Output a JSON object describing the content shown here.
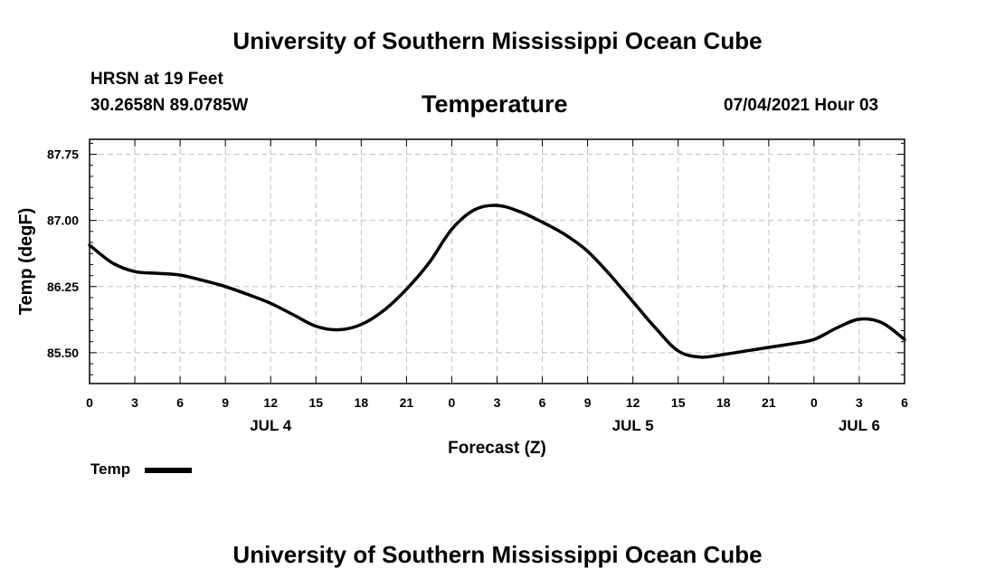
{
  "header": {
    "title_top": "University of Southern Mississippi Ocean Cube",
    "station": "HRSN at 19 Feet",
    "coords": "30.2658N  89.0785W",
    "variable": "Temperature",
    "timestamp": "07/04/2021 Hour 03"
  },
  "footer": {
    "title_bottom": "University of Southern Mississippi Ocean Cube"
  },
  "legend": {
    "label": "Temp"
  },
  "chart_data": {
    "type": "line",
    "title": "Temperature",
    "xlabel": "Forecast (Z)",
    "ylabel": "Temp (degF)",
    "xlim": [
      0,
      54
    ],
    "ylim": [
      85.15,
      87.92
    ],
    "grid": true,
    "yticks": [
      85.5,
      86.25,
      87.0,
      87.75
    ],
    "ytick_labels": [
      "85.50",
      "86.25",
      "87.00",
      "87.75"
    ],
    "xticks": [
      0,
      3,
      6,
      9,
      12,
      15,
      18,
      21,
      24,
      27,
      30,
      33,
      36,
      39,
      42,
      45,
      48,
      51,
      54
    ],
    "xtick_labels": [
      "0",
      "3",
      "6",
      "9",
      "12",
      "15",
      "18",
      "21",
      "0",
      "3",
      "6",
      "9",
      "12",
      "15",
      "18",
      "21",
      "0",
      "3",
      "6"
    ],
    "date_labels": [
      {
        "x": 12,
        "label": "JUL 4"
      },
      {
        "x": 36,
        "label": "JUL 5"
      },
      {
        "x": 51,
        "label": "JUL 6"
      }
    ],
    "series": [
      {
        "name": "Temp",
        "color": "#000000",
        "x": [
          0,
          1.5,
          3,
          4.5,
          6,
          7.5,
          9,
          10.5,
          12,
          13.5,
          15,
          16.5,
          18,
          19.5,
          21,
          22.5,
          24,
          25.5,
          27,
          28.5,
          30,
          31.5,
          33,
          34.5,
          36,
          37.5,
          39,
          40.5,
          42,
          43.5,
          45,
          46.5,
          48,
          49.5,
          51,
          52.5,
          54
        ],
        "values": [
          86.72,
          86.52,
          86.42,
          86.4,
          86.38,
          86.32,
          86.25,
          86.16,
          86.06,
          85.93,
          85.8,
          85.76,
          85.82,
          85.98,
          86.22,
          86.52,
          86.9,
          87.12,
          87.17,
          87.1,
          86.98,
          86.84,
          86.65,
          86.38,
          86.08,
          85.78,
          85.52,
          85.45,
          85.48,
          85.52,
          85.56,
          85.6,
          85.65,
          85.78,
          85.88,
          85.84,
          85.65
        ]
      }
    ]
  }
}
